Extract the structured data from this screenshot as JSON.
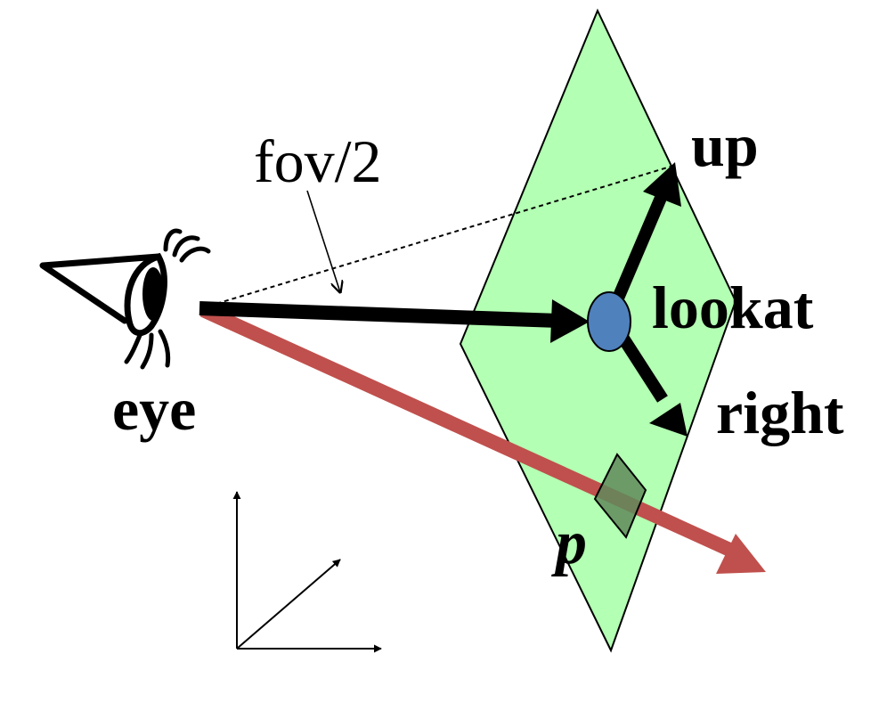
{
  "labels": {
    "up": "up",
    "lookat": "lookat",
    "right": "right",
    "eye": "eye",
    "fov": "fov/2",
    "p": "p"
  },
  "colors": {
    "image_plane": "#b3ffb3",
    "lookat_point": "#4f81bd",
    "ray": "#c0504d",
    "pixel": "#5f8a5a",
    "arrows": "#000000"
  },
  "icons": {
    "eye": "eye-icon"
  }
}
